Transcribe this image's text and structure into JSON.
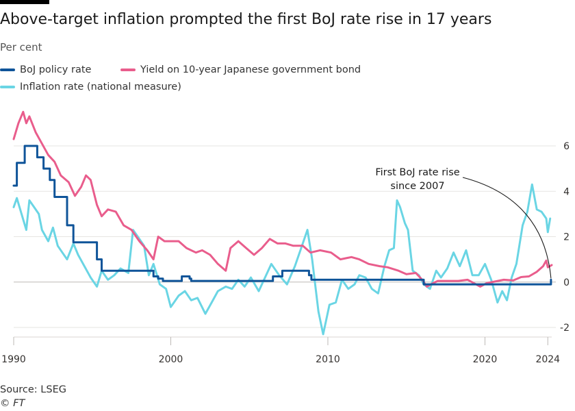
{
  "chart_data": {
    "type": "line",
    "title": "Above-target inflation prompted the first BoJ rate rise in 17 years",
    "subtitle": "Per cent",
    "xlabel": "",
    "ylabel": "",
    "xlim": [
      1990,
      2024.25
    ],
    "ylim": [
      -3,
      6
    ],
    "y_ticks": [
      6,
      4,
      2,
      0,
      -2
    ],
    "y_tick_labels": [
      "6",
      "4",
      "2",
      "0",
      "-2"
    ],
    "x_ticks": [
      1990,
      2000,
      2010,
      2020,
      2024
    ],
    "x_tick_labels": [
      "1990",
      "2000",
      "2010",
      "2020",
      "2024"
    ],
    "grid": true,
    "legend_position": "top-left",
    "colors": {
      "policy": "#0f5499",
      "yield": "#e95d8c",
      "inflation": "#6ad5e4",
      "grid": "#e6e4e2",
      "zero": "#bdb9b6",
      "text": "#33302e"
    },
    "annotation": {
      "line1": "First BoJ rate rise",
      "line2": "since 2007",
      "target_x": 2024.2,
      "target_y": 0.1
    },
    "series": [
      {
        "name": "BoJ policy rate",
        "key": "policy",
        "step": true,
        "points": [
          [
            1990.0,
            4.25
          ],
          [
            1990.2,
            5.25
          ],
          [
            1990.7,
            6.0
          ],
          [
            1991.5,
            5.5
          ],
          [
            1991.9,
            5.0
          ],
          [
            1992.3,
            4.5
          ],
          [
            1992.6,
            3.75
          ],
          [
            1993.4,
            2.5
          ],
          [
            1993.8,
            1.75
          ],
          [
            1995.3,
            1.0
          ],
          [
            1995.6,
            0.5
          ],
          [
            1998.5,
            0.5
          ],
          [
            1998.9,
            0.25
          ],
          [
            1999.2,
            0.15
          ],
          [
            1999.5,
            0.05
          ],
          [
            2000.7,
            0.25
          ],
          [
            2001.2,
            0.15
          ],
          [
            2001.3,
            0.05
          ],
          [
            2006.5,
            0.25
          ],
          [
            2007.1,
            0.5
          ],
          [
            2008.8,
            0.3
          ],
          [
            2008.95,
            0.1
          ],
          [
            2016.1,
            -0.1
          ],
          [
            2024.2,
            0.1
          ]
        ]
      },
      {
        "name": "Yield on 10-year Japanese government bond",
        "key": "yield",
        "step": false,
        "points": [
          [
            1990.0,
            6.3
          ],
          [
            1990.3,
            7.0
          ],
          [
            1990.6,
            7.5
          ],
          [
            1990.8,
            7.0
          ],
          [
            1991.0,
            7.3
          ],
          [
            1991.4,
            6.6
          ],
          [
            1991.8,
            6.1
          ],
          [
            1992.2,
            5.6
          ],
          [
            1992.6,
            5.3
          ],
          [
            1993.0,
            4.7
          ],
          [
            1993.5,
            4.4
          ],
          [
            1993.9,
            3.8
          ],
          [
            1994.3,
            4.2
          ],
          [
            1994.6,
            4.7
          ],
          [
            1994.9,
            4.5
          ],
          [
            1995.3,
            3.4
          ],
          [
            1995.6,
            2.9
          ],
          [
            1996.0,
            3.2
          ],
          [
            1996.5,
            3.1
          ],
          [
            1997.0,
            2.5
          ],
          [
            1997.5,
            2.3
          ],
          [
            1998.0,
            1.8
          ],
          [
            1998.5,
            1.4
          ],
          [
            1998.9,
            1.0
          ],
          [
            1999.2,
            2.0
          ],
          [
            1999.6,
            1.8
          ],
          [
            2000.0,
            1.8
          ],
          [
            2000.5,
            1.8
          ],
          [
            2001.0,
            1.5
          ],
          [
            2001.6,
            1.3
          ],
          [
            2002.0,
            1.4
          ],
          [
            2002.5,
            1.2
          ],
          [
            2003.0,
            0.8
          ],
          [
            2003.5,
            0.5
          ],
          [
            2003.8,
            1.5
          ],
          [
            2004.3,
            1.8
          ],
          [
            2004.8,
            1.5
          ],
          [
            2005.3,
            1.2
          ],
          [
            2005.8,
            1.5
          ],
          [
            2006.3,
            1.9
          ],
          [
            2006.8,
            1.7
          ],
          [
            2007.3,
            1.7
          ],
          [
            2007.8,
            1.6
          ],
          [
            2008.4,
            1.6
          ],
          [
            2008.9,
            1.3
          ],
          [
            2009.5,
            1.4
          ],
          [
            2010.2,
            1.3
          ],
          [
            2010.8,
            1.0
          ],
          [
            2011.5,
            1.1
          ],
          [
            2012.0,
            1.0
          ],
          [
            2012.6,
            0.8
          ],
          [
            2013.3,
            0.7
          ],
          [
            2013.8,
            0.65
          ],
          [
            2014.5,
            0.5
          ],
          [
            2015.0,
            0.35
          ],
          [
            2015.6,
            0.4
          ],
          [
            2016.0,
            0.1
          ],
          [
            2016.3,
            -0.2
          ],
          [
            2016.7,
            -0.05
          ],
          [
            2017.0,
            0.05
          ],
          [
            2017.6,
            0.05
          ],
          [
            2018.3,
            0.05
          ],
          [
            2018.9,
            0.1
          ],
          [
            2019.3,
            -0.05
          ],
          [
            2019.7,
            -0.2
          ],
          [
            2020.1,
            -0.05
          ],
          [
            2020.6,
            0.02
          ],
          [
            2021.2,
            0.1
          ],
          [
            2021.8,
            0.07
          ],
          [
            2022.3,
            0.22
          ],
          [
            2022.8,
            0.25
          ],
          [
            2023.3,
            0.45
          ],
          [
            2023.7,
            0.7
          ],
          [
            2023.9,
            0.95
          ],
          [
            2024.0,
            0.65
          ],
          [
            2024.25,
            0.75
          ]
        ]
      },
      {
        "name": "Inflation rate (national measure)",
        "key": "inflation",
        "step": false,
        "points": [
          [
            1990.0,
            3.3
          ],
          [
            1990.2,
            3.7
          ],
          [
            1990.5,
            3.0
          ],
          [
            1990.8,
            2.3
          ],
          [
            1991.0,
            3.6
          ],
          [
            1991.3,
            3.3
          ],
          [
            1991.6,
            3.0
          ],
          [
            1991.8,
            2.3
          ],
          [
            1992.2,
            1.8
          ],
          [
            1992.5,
            2.4
          ],
          [
            1992.8,
            1.6
          ],
          [
            1993.1,
            1.3
          ],
          [
            1993.4,
            1.0
          ],
          [
            1993.8,
            1.7
          ],
          [
            1994.1,
            1.2
          ],
          [
            1994.5,
            0.7
          ],
          [
            1994.9,
            0.2
          ],
          [
            1995.3,
            -0.2
          ],
          [
            1995.6,
            0.5
          ],
          [
            1996.0,
            0.1
          ],
          [
            1996.4,
            0.3
          ],
          [
            1996.8,
            0.6
          ],
          [
            1997.3,
            0.4
          ],
          [
            1997.6,
            2.3
          ],
          [
            1997.9,
            2.0
          ],
          [
            1998.3,
            1.6
          ],
          [
            1998.6,
            0.3
          ],
          [
            1998.9,
            0.8
          ],
          [
            1999.3,
            -0.1
          ],
          [
            1999.7,
            -0.3
          ],
          [
            2000.0,
            -1.1
          ],
          [
            2000.5,
            -0.6
          ],
          [
            2000.9,
            -0.4
          ],
          [
            2001.3,
            -0.8
          ],
          [
            2001.7,
            -0.7
          ],
          [
            2002.2,
            -1.4
          ],
          [
            2002.6,
            -0.9
          ],
          [
            2003.0,
            -0.4
          ],
          [
            2003.5,
            -0.2
          ],
          [
            2003.9,
            -0.3
          ],
          [
            2004.3,
            0.1
          ],
          [
            2004.7,
            -0.2
          ],
          [
            2005.1,
            0.2
          ],
          [
            2005.6,
            -0.4
          ],
          [
            2006.0,
            0.2
          ],
          [
            2006.4,
            0.8
          ],
          [
            2006.9,
            0.3
          ],
          [
            2007.4,
            -0.1
          ],
          [
            2007.9,
            0.7
          ],
          [
            2008.3,
            1.5
          ],
          [
            2008.7,
            2.3
          ],
          [
            2009.0,
            1.0
          ],
          [
            2009.4,
            -1.3
          ],
          [
            2009.7,
            -2.3
          ],
          [
            2010.1,
            -1.0
          ],
          [
            2010.5,
            -0.9
          ],
          [
            2010.9,
            0.1
          ],
          [
            2011.3,
            -0.3
          ],
          [
            2011.7,
            -0.1
          ],
          [
            2012.0,
            0.3
          ],
          [
            2012.4,
            0.2
          ],
          [
            2012.8,
            -0.3
          ],
          [
            2013.2,
            -0.5
          ],
          [
            2013.6,
            0.7
          ],
          [
            2013.9,
            1.4
          ],
          [
            2014.2,
            1.5
          ],
          [
            2014.4,
            3.6
          ],
          [
            2014.6,
            3.3
          ],
          [
            2014.9,
            2.6
          ],
          [
            2015.1,
            2.3
          ],
          [
            2015.4,
            0.5
          ],
          [
            2015.8,
            0.3
          ],
          [
            2016.1,
            -0.1
          ],
          [
            2016.5,
            -0.3
          ],
          [
            2016.9,
            0.5
          ],
          [
            2017.2,
            0.2
          ],
          [
            2017.6,
            0.6
          ],
          [
            2018.0,
            1.3
          ],
          [
            2018.4,
            0.7
          ],
          [
            2018.8,
            1.4
          ],
          [
            2019.2,
            0.3
          ],
          [
            2019.6,
            0.3
          ],
          [
            2020.0,
            0.8
          ],
          [
            2020.4,
            0.1
          ],
          [
            2020.8,
            -0.9
          ],
          [
            2021.1,
            -0.4
          ],
          [
            2021.4,
            -0.8
          ],
          [
            2021.7,
            0.2
          ],
          [
            2022.0,
            0.8
          ],
          [
            2022.4,
            2.5
          ],
          [
            2022.7,
            3.1
          ],
          [
            2023.0,
            4.3
          ],
          [
            2023.3,
            3.2
          ],
          [
            2023.6,
            3.1
          ],
          [
            2023.9,
            2.8
          ],
          [
            2024.0,
            2.2
          ],
          [
            2024.15,
            2.8
          ]
        ]
      }
    ]
  },
  "footer": {
    "source": "Source: LSEG",
    "copyright": "© FT"
  }
}
